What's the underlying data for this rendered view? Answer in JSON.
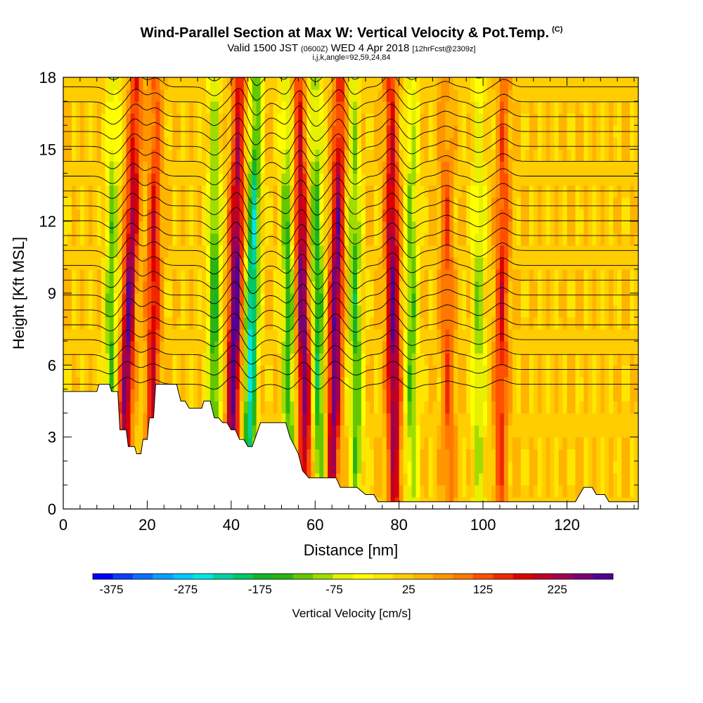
{
  "chart_data": {
    "type": "heatmap",
    "title": "Wind-Parallel Section at Max W: Vertical Velocity & Pot.Temp.",
    "title_units": "(C)",
    "subtitle_main": "Valid 1500 JST",
    "subtitle_utc": "(0600Z)",
    "subtitle_date": "WED 4 Apr 2018",
    "subtitle_fcst": "[12hrFcst@2309z]",
    "subtitle2": "i,j,k,angle=92,59,24,84",
    "xlabel": "Distance [nm]",
    "ylabel": "Height [Kft MSL]",
    "xlim": [
      0,
      137
    ],
    "ylim": [
      0,
      18
    ],
    "x_ticks": [
      "0",
      "20",
      "40",
      "60",
      "80",
      "100",
      "120"
    ],
    "y_ticks": [
      "0",
      "3",
      "6",
      "9",
      "12",
      "15",
      "18"
    ],
    "colorbar_label": "Vertical Velocity [cm/s]",
    "colorbar_ticks": [
      "-375",
      "-275",
      "-175",
      "-75",
      "25",
      "125",
      "225"
    ],
    "colorbar_range": [
      -400,
      300
    ],
    "colorbar_colors": [
      "#0000ff",
      "#0a3cff",
      "#0a6eff",
      "#0aa0ff",
      "#00c8ff",
      "#00e6e6",
      "#00d2a0",
      "#00c864",
      "#14b428",
      "#28b414",
      "#64c800",
      "#a0dc00",
      "#e6f000",
      "#ffff00",
      "#ffe600",
      "#ffcd00",
      "#ffb400",
      "#ff9600",
      "#ff7800",
      "#ff5000",
      "#f02800",
      "#dc0000",
      "#be0028",
      "#a00050",
      "#780078",
      "#500096"
    ],
    "updrafts": [
      {
        "x": 14,
        "x_top": 17.5,
        "w": 250
      },
      {
        "x": 21,
        "x_top": 22,
        "w": 175
      },
      {
        "x": 40,
        "x_top": 42,
        "w": 275
      },
      {
        "x": 58,
        "x_top": 56,
        "w": 250
      },
      {
        "x": 64,
        "x_top": 66,
        "w": 260
      },
      {
        "x": 79,
        "x_top": 78,
        "w": 250
      },
      {
        "x": 92,
        "x_top": 91,
        "w": 110
      },
      {
        "x": 104,
        "x_top": 105,
        "w": 150
      }
    ],
    "downdrafts": [
      {
        "x": 11,
        "x_top": 12,
        "w": -150
      },
      {
        "x": 36,
        "x_top": 36,
        "w": -175
      },
      {
        "x": 44,
        "x_top": 46,
        "w": -275
      },
      {
        "x": 54,
        "x_top": 53,
        "w": -175
      },
      {
        "x": 61,
        "x_top": 60,
        "w": -200
      },
      {
        "x": 70,
        "x_top": 69,
        "w": -175
      },
      {
        "x": 83,
        "x_top": 83,
        "w": -150
      },
      {
        "x": 99,
        "x_top": 99,
        "w": -120
      }
    ],
    "terrain": [
      [
        0,
        4.9
      ],
      [
        8,
        4.9
      ],
      [
        8.5,
        5.2
      ],
      [
        11,
        5.2
      ],
      [
        11.5,
        4.9
      ],
      [
        13,
        4.9
      ],
      [
        13.5,
        3.3
      ],
      [
        15,
        3.3
      ],
      [
        15.5,
        2.6
      ],
      [
        17,
        2.6
      ],
      [
        17.5,
        2.3
      ],
      [
        18.5,
        2.3
      ],
      [
        19,
        2.9
      ],
      [
        20,
        2.9
      ],
      [
        20.5,
        3.8
      ],
      [
        21.5,
        3.8
      ],
      [
        22,
        5.2
      ],
      [
        27,
        5.2
      ],
      [
        28,
        4.5
      ],
      [
        29,
        4.5
      ],
      [
        30,
        4.2
      ],
      [
        33,
        4.2
      ],
      [
        33.5,
        4.5
      ],
      [
        35,
        4.5
      ],
      [
        36,
        3.8
      ],
      [
        37,
        3.8
      ],
      [
        38,
        3.6
      ],
      [
        39,
        3.6
      ],
      [
        40,
        3.3
      ],
      [
        41,
        3.3
      ],
      [
        42,
        2.9
      ],
      [
        43,
        2.9
      ],
      [
        44,
        2.6
      ],
      [
        45,
        2.6
      ],
      [
        46,
        3.1
      ],
      [
        47,
        3.6
      ],
      [
        53,
        3.6
      ],
      [
        54,
        3.0
      ],
      [
        56,
        2.3
      ],
      [
        57,
        1.6
      ],
      [
        58.5,
        1.3
      ],
      [
        65,
        1.3
      ],
      [
        66,
        0.9
      ],
      [
        70,
        0.9
      ],
      [
        72,
        0.6
      ],
      [
        74,
        0.6
      ],
      [
        75,
        0.3
      ],
      [
        122,
        0.3
      ],
      [
        123,
        0.6
      ],
      [
        124,
        0.9
      ],
      [
        126,
        0.9
      ],
      [
        127,
        0.6
      ],
      [
        129,
        0.6
      ],
      [
        130,
        0.3
      ],
      [
        137,
        0.3
      ]
    ]
  }
}
